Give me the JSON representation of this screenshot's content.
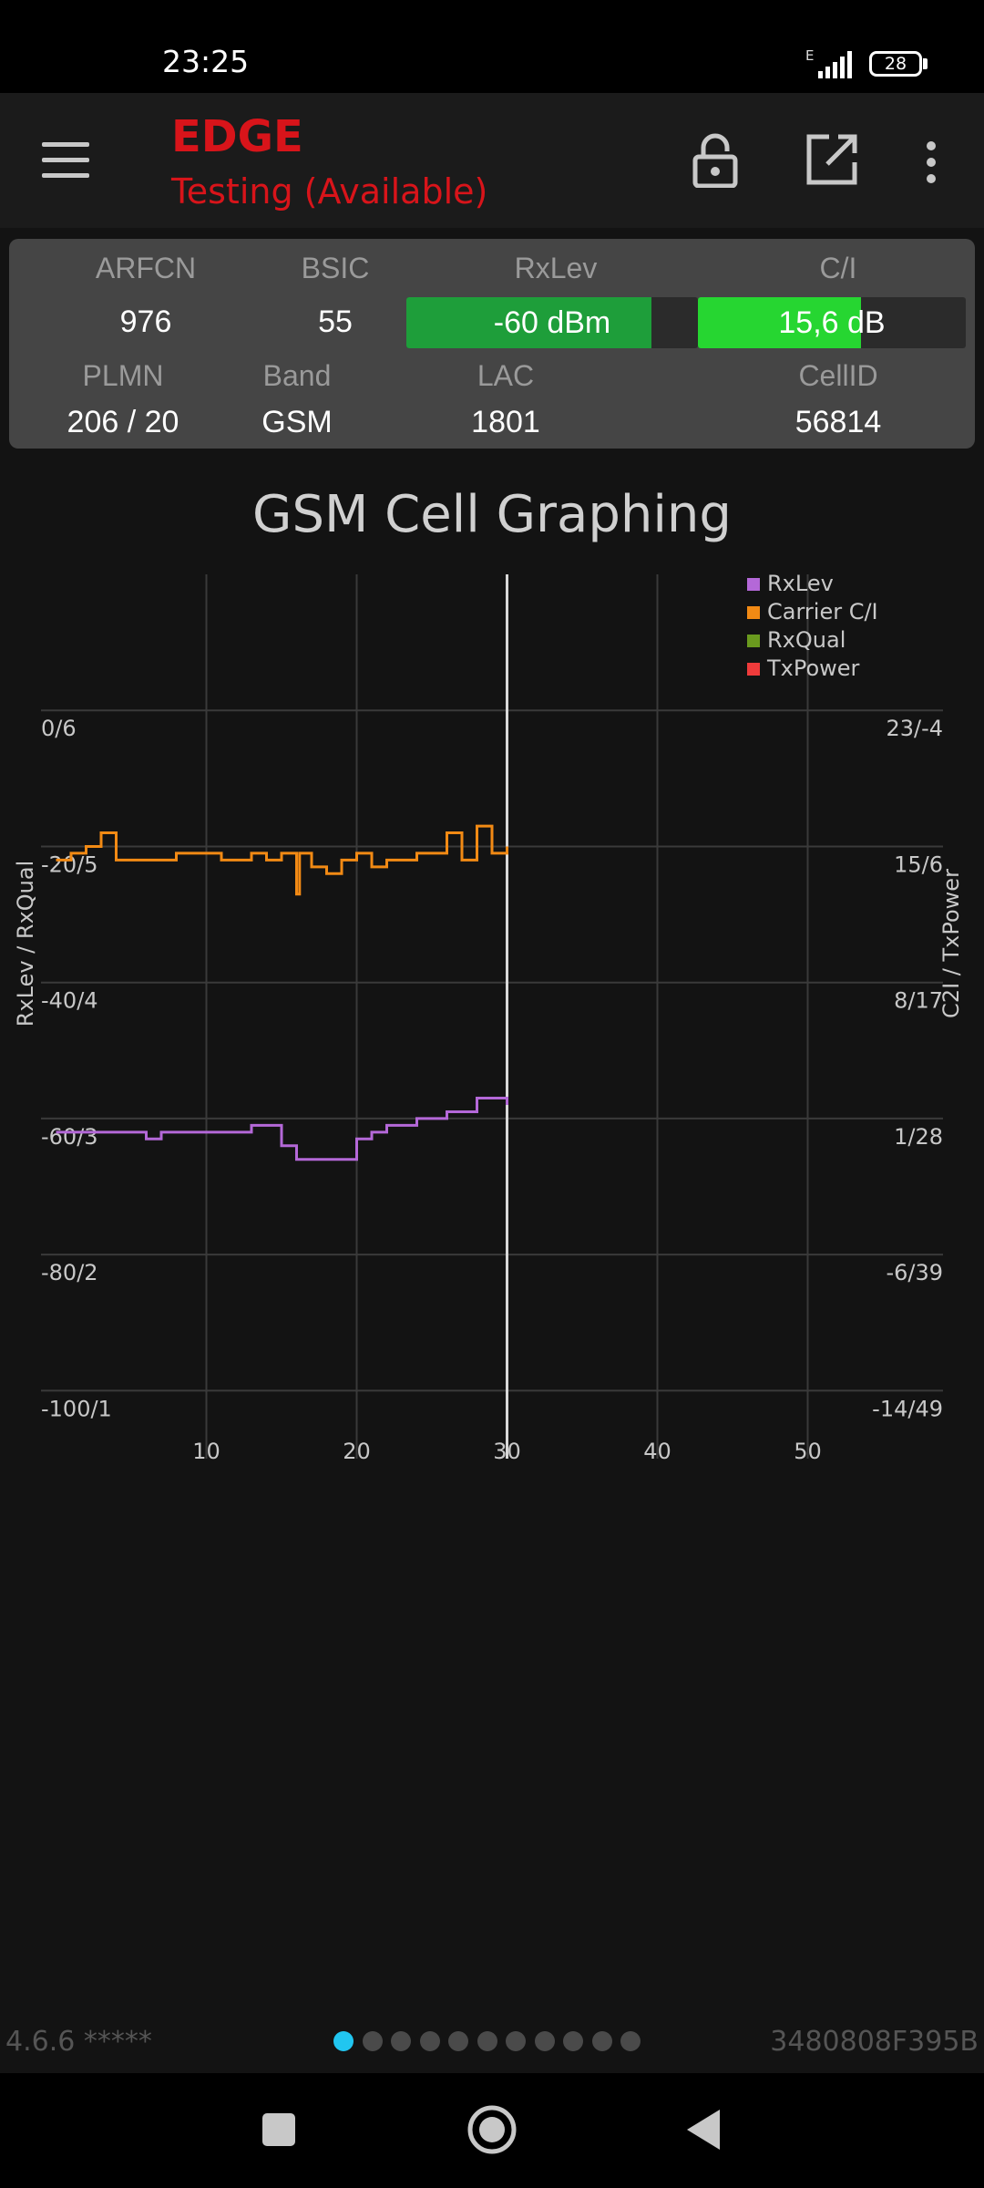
{
  "status_bar": {
    "time": "23:25",
    "network_type": "E",
    "battery": "28",
    "signal_icon": "signal-bars-icon",
    "battery_icon": "battery-icon"
  },
  "app_bar": {
    "title": "EDGE",
    "subtitle": "Testing (Available)",
    "accent_color": "#d8141a",
    "icons": [
      "menu-icon",
      "lock-open-icon",
      "open-external-icon",
      "more-vert-icon"
    ]
  },
  "cell_info": {
    "arfcn_label": "ARFCN",
    "arfcn_value": "976",
    "bsic_label": "BSIC",
    "bsic_value": "55",
    "rxlev_label": "RxLev",
    "rxlev_value": "-60 dBm",
    "rxlev_level": 0.84,
    "rxlev_color": "#1e9e3a",
    "ci_label": "C/I",
    "ci_value": "15,6 dB",
    "ci_level": 0.61,
    "ci_color": "#26d631",
    "plmn_label": "PLMN",
    "plmn_value": "206 / 20",
    "band_label": "Band",
    "band_value": "GSM",
    "lac_label": "LAC",
    "lac_value": "1801",
    "cellid_label": "CellID",
    "cellid_value": "56814"
  },
  "graph_title": "GSM Cell Graphing",
  "chart_data": {
    "type": "line",
    "xlabel": "",
    "left_ylabel": "RxLev / RxQual",
    "right_ylabel": "C2I / TxPower",
    "xlim": [
      -1,
      59
    ],
    "ylim": [
      -110,
      20
    ],
    "x_ticks": [
      10,
      20,
      30,
      40,
      50
    ],
    "left_tick_values": [
      0,
      -20,
      -40,
      -60,
      -80,
      -100
    ],
    "left_tick_labels": [
      "0/6",
      "-20/5",
      "-40/4",
      "-60/3",
      "-80/2",
      "-100/1"
    ],
    "right_tick_labels": [
      "23/-4",
      "15/6",
      "8/17",
      "1/28",
      "-6/39",
      "-14/49"
    ],
    "cursor_x": 30,
    "grid": true,
    "legend_position": "top-right",
    "series": [
      {
        "name": "RxLev",
        "color": "#b468d8",
        "step": true,
        "points": [
          [
            0,
            -62
          ],
          [
            4,
            -62
          ],
          [
            6,
            -63
          ],
          [
            7,
            -62
          ],
          [
            10,
            -62
          ],
          [
            13,
            -61
          ],
          [
            15,
            -64
          ],
          [
            16,
            -66
          ],
          [
            20,
            -63
          ],
          [
            21,
            -62
          ],
          [
            22,
            -61
          ],
          [
            24,
            -60
          ],
          [
            26,
            -59
          ],
          [
            28,
            -57
          ],
          [
            30,
            -58
          ]
        ]
      },
      {
        "name": "Carrier C/I",
        "color": "#f28a14",
        "step": true,
        "points": [
          [
            0,
            -22
          ],
          [
            1,
            -21
          ],
          [
            2,
            -20
          ],
          [
            3,
            -18
          ],
          [
            4,
            -22
          ],
          [
            6,
            -22
          ],
          [
            8,
            -21
          ],
          [
            10,
            -21
          ],
          [
            11,
            -22
          ],
          [
            13,
            -21
          ],
          [
            14,
            -22
          ],
          [
            15,
            -21
          ],
          [
            16,
            -27
          ],
          [
            16.2,
            -21
          ],
          [
            17,
            -23
          ],
          [
            18,
            -24
          ],
          [
            19,
            -22
          ],
          [
            20,
            -21
          ],
          [
            21,
            -23
          ],
          [
            22,
            -22
          ],
          [
            24,
            -21
          ],
          [
            26,
            -18
          ],
          [
            27,
            -22
          ],
          [
            28,
            -17
          ],
          [
            29,
            -21
          ],
          [
            30,
            -20
          ]
        ]
      },
      {
        "name": "RxQual",
        "color": "#6a9a1e",
        "step": true,
        "points": []
      },
      {
        "name": "TxPower",
        "color": "#ef3b3b",
        "step": true,
        "points": []
      }
    ]
  },
  "footer": {
    "version": "4.6.6 *****",
    "device_id": "3480808F395B",
    "page_count": 11,
    "active_page": 0
  },
  "nav_bar": {
    "icons": [
      "recents-square-icon",
      "home-circle-icon",
      "back-triangle-icon"
    ]
  }
}
